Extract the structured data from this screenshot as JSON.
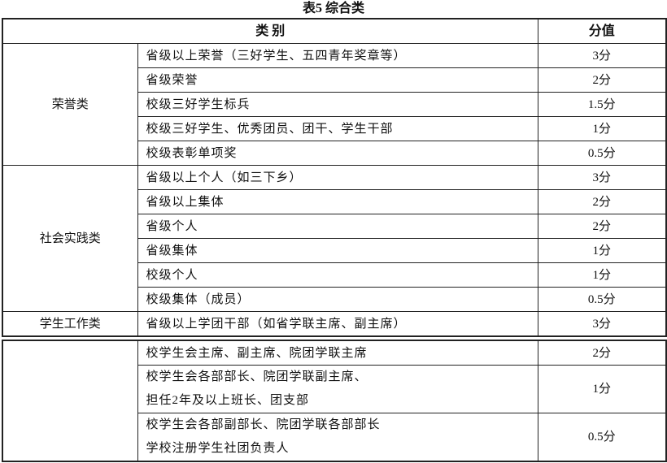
{
  "title": "表5 综合类",
  "header": {
    "category": "类 别",
    "score": "分值"
  },
  "groups": [
    {
      "name": "荣誉类",
      "items": [
        {
          "label": "省级以上荣誉（三好学生、五四青年奖章等）",
          "score": "3分"
        },
        {
          "label": "省级荣誉",
          "score": "2分"
        },
        {
          "label": "校级三好学生标兵",
          "score": "1.5分"
        },
        {
          "label": "校级三好学生、优秀团员、团干、学生干部",
          "score": "1分"
        },
        {
          "label": "校级表彰单项奖",
          "score": "0.5分"
        }
      ]
    },
    {
      "name": "社会实践类",
      "items": [
        {
          "label": "省级以上个人（如三下乡）",
          "score": "3分"
        },
        {
          "label": "省级以上集体",
          "score": "2分"
        },
        {
          "label": "省级个人",
          "score": "2分"
        },
        {
          "label": "省级集体",
          "score": "1分"
        },
        {
          "label": "校级个人",
          "score": "1分"
        },
        {
          "label": "校级集体（成员）",
          "score": "0.5分"
        }
      ]
    },
    {
      "name": "学生工作类",
      "items": [
        {
          "label": "省级以上学团干部（如省学联主席、副主席）",
          "score": "3分"
        }
      ]
    }
  ],
  "continued": [
    {
      "lines": [
        "校学生会主席、副主席、院团学联主席"
      ],
      "score": "2分"
    },
    {
      "lines": [
        "校学生会各部部长、院团学联副主席、",
        "担任2年及以上班长、团支部"
      ],
      "score": "1分"
    },
    {
      "lines": [
        "校学生会各部副部长、院团学联各部部长",
        "学校注册学生社团负责人"
      ],
      "score": "0.5分"
    }
  ]
}
